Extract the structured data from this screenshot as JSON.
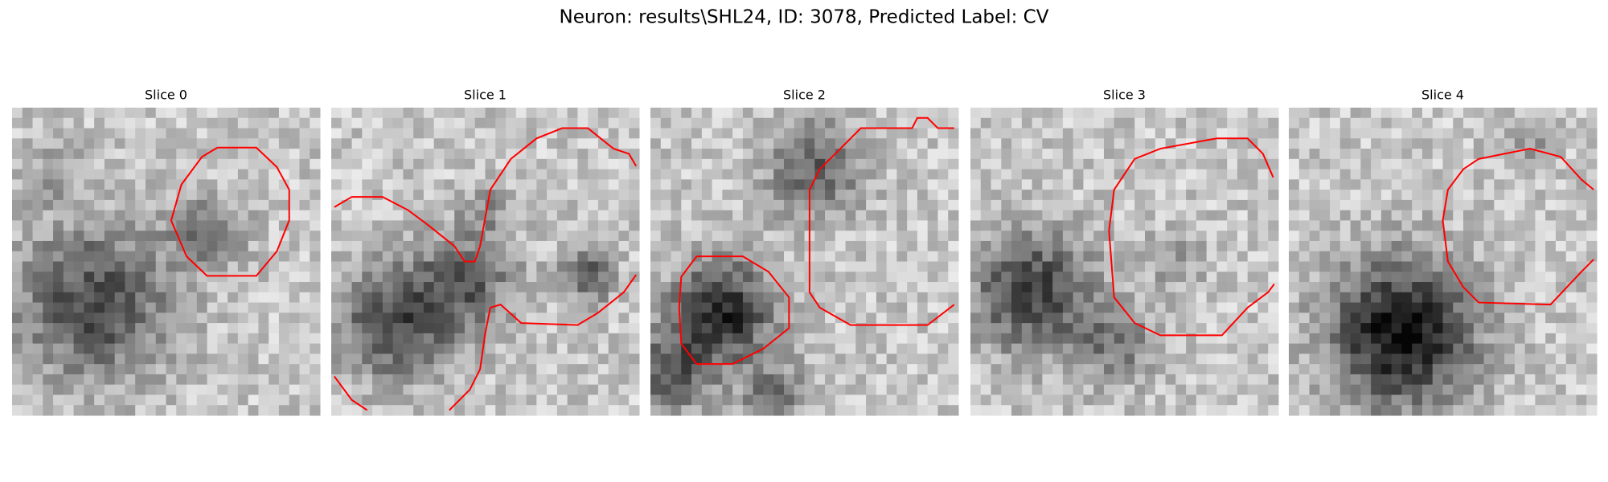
{
  "title": "Neuron: results\\SHL24, ID: 3078, Predicted Label: CV",
  "panels": [
    {
      "title": "Slice 0"
    },
    {
      "title": "Slice 1"
    },
    {
      "title": "Slice 2"
    },
    {
      "title": "Slice 3"
    },
    {
      "title": "Slice 4"
    }
  ]
}
